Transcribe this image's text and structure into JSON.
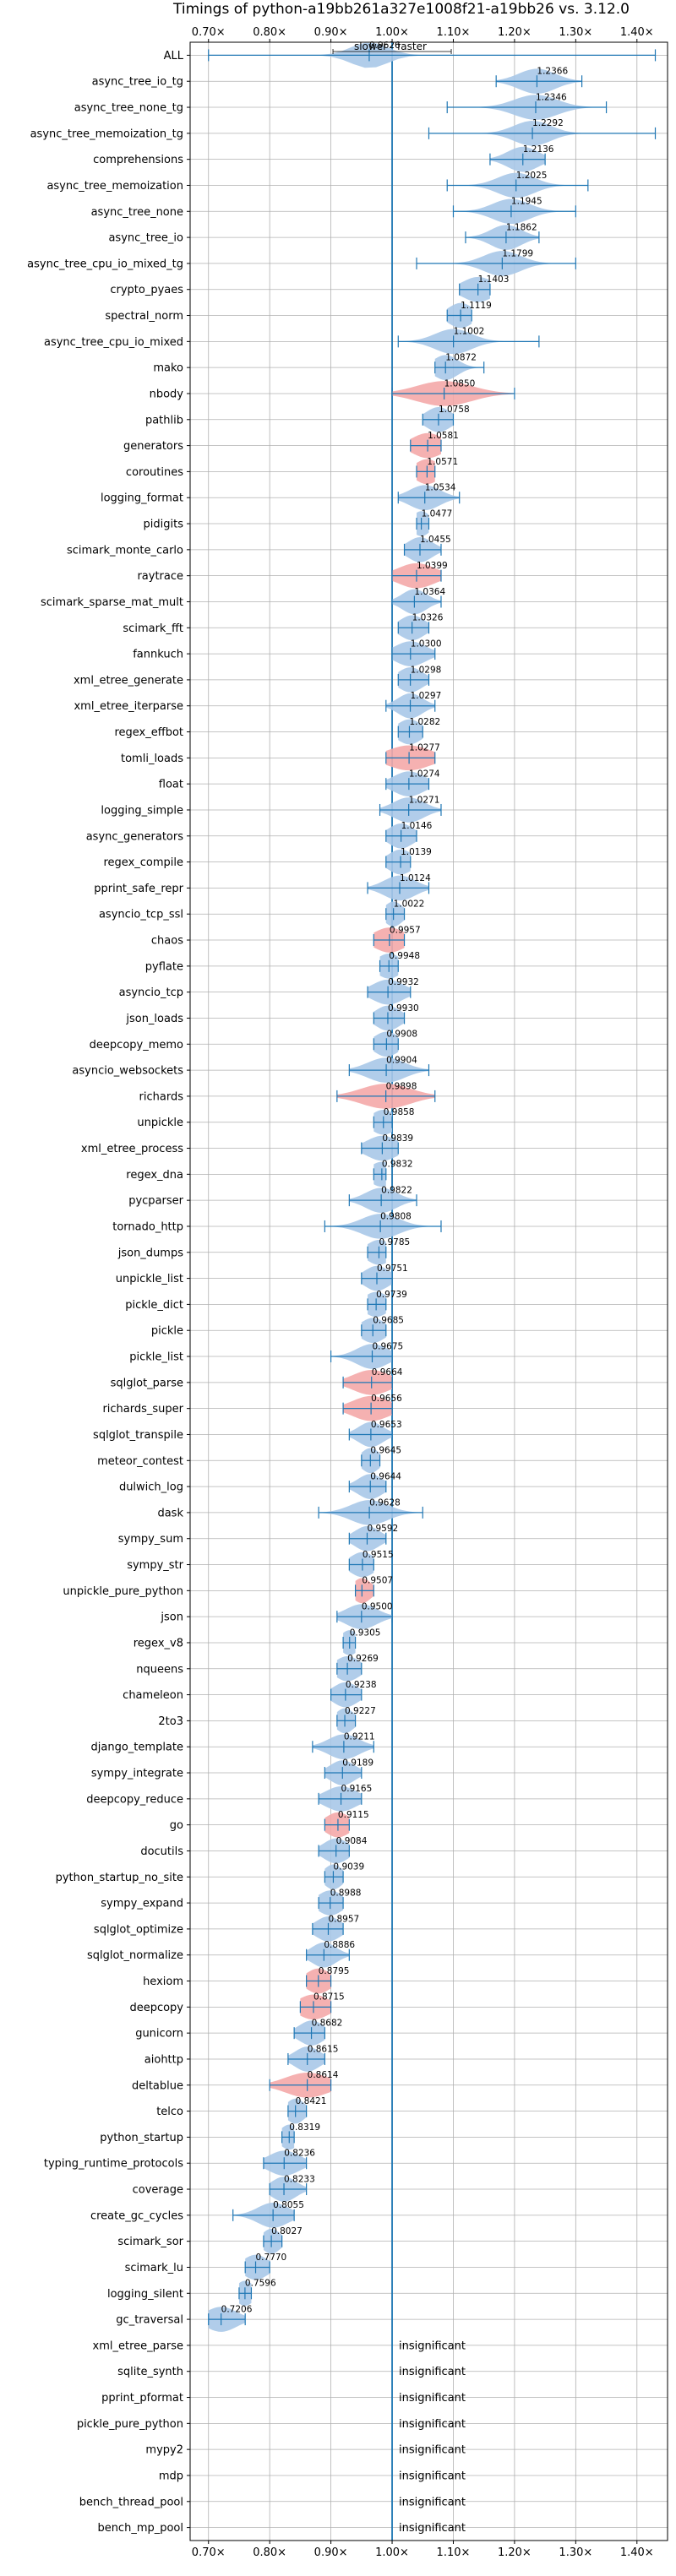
{
  "chart_data": {
    "type": "violin",
    "title": "Timings of python-a19bb261a327e1008f21-a19bb26 vs. 3.12.0",
    "xlabel": "",
    "ylabel": "",
    "xlim": [
      0.67,
      1.45
    ],
    "x_ticks": [
      0.7,
      0.8,
      0.9,
      1.0,
      1.1,
      1.2,
      1.3,
      1.4
    ],
    "x_tick_labels": [
      "0.70×",
      "0.80×",
      "0.90×",
      "1.00×",
      "1.10×",
      "1.20×",
      "1.30×",
      "1.40×"
    ],
    "reference_line": 1.0,
    "annotation_slower": "slower",
    "annotation_faster": "faster",
    "grid": true,
    "colors": {
      "normal": "#a8c8e8",
      "highlight": "#f4a8a8",
      "line": "#1f77b4",
      "grid": "#b0b0b0"
    },
    "insignificant_label": "insignificant",
    "benchmarks": [
      {
        "name": "ALL",
        "value": 0.9626,
        "label": "0.9626",
        "min": 0.7,
        "max": 1.43,
        "width": 0.06,
        "highlight": false
      },
      {
        "name": "async_tree_io_tg",
        "value": 1.2366,
        "label": "1.2366",
        "min": 1.17,
        "max": 1.31,
        "width": 0.06,
        "highlight": false
      },
      {
        "name": "async_tree_none_tg",
        "value": 1.2346,
        "label": "1.2346",
        "min": 1.09,
        "max": 1.35,
        "width": 0.07,
        "highlight": false
      },
      {
        "name": "async_tree_memoization_tg",
        "value": 1.2292,
        "label": "1.2292",
        "min": 1.06,
        "max": 1.43,
        "width": 0.06,
        "highlight": false
      },
      {
        "name": "comprehensions",
        "value": 1.2136,
        "label": "1.2136",
        "min": 1.16,
        "max": 1.25,
        "width": 0.05,
        "highlight": false
      },
      {
        "name": "async_tree_memoization",
        "value": 1.2025,
        "label": "1.2025",
        "min": 1.09,
        "max": 1.32,
        "width": 0.06,
        "highlight": false
      },
      {
        "name": "async_tree_none",
        "value": 1.1945,
        "label": "1.1945",
        "min": 1.1,
        "max": 1.3,
        "width": 0.06,
        "highlight": false
      },
      {
        "name": "async_tree_io",
        "value": 1.1862,
        "label": "1.1862",
        "min": 1.12,
        "max": 1.24,
        "width": 0.05,
        "highlight": false
      },
      {
        "name": "async_tree_cpu_io_mixed_tg",
        "value": 1.1799,
        "label": "1.1799",
        "min": 1.04,
        "max": 1.3,
        "width": 0.06,
        "highlight": false
      },
      {
        "name": "crypto_pyaes",
        "value": 1.1403,
        "label": "1.1403",
        "min": 1.11,
        "max": 1.16,
        "width": 0.05,
        "highlight": false
      },
      {
        "name": "spectral_norm",
        "value": 1.1119,
        "label": "1.1119",
        "min": 1.09,
        "max": 1.13,
        "width": 0.04,
        "highlight": false
      },
      {
        "name": "async_tree_cpu_io_mixed",
        "value": 1.1002,
        "label": "1.1002",
        "min": 1.01,
        "max": 1.24,
        "width": 0.06,
        "highlight": false
      },
      {
        "name": "mako",
        "value": 1.0872,
        "label": "1.0872",
        "min": 1.07,
        "max": 1.15,
        "width": 0.04,
        "highlight": false
      },
      {
        "name": "nbody",
        "value": 1.085,
        "label": "1.0850",
        "min": 1.0,
        "max": 1.2,
        "width": 0.09,
        "highlight": true
      },
      {
        "name": "pathlib",
        "value": 1.0758,
        "label": "1.0758",
        "min": 1.05,
        "max": 1.1,
        "width": 0.04,
        "highlight": false
      },
      {
        "name": "generators",
        "value": 1.0581,
        "label": "1.0581",
        "min": 1.03,
        "max": 1.08,
        "width": 0.05,
        "highlight": true
      },
      {
        "name": "coroutines",
        "value": 1.0571,
        "label": "1.0571",
        "min": 1.04,
        "max": 1.07,
        "width": 0.04,
        "highlight": true
      },
      {
        "name": "logging_format",
        "value": 1.0534,
        "label": "1.0534",
        "min": 1.01,
        "max": 1.11,
        "width": 0.05,
        "highlight": false
      },
      {
        "name": "pidigits",
        "value": 1.0477,
        "label": "1.0477",
        "min": 1.04,
        "max": 1.06,
        "width": 0.03,
        "highlight": false
      },
      {
        "name": "scimark_monte_carlo",
        "value": 1.0455,
        "label": "1.0455",
        "min": 1.02,
        "max": 1.08,
        "width": 0.04,
        "highlight": false
      },
      {
        "name": "raytrace",
        "value": 1.0399,
        "label": "1.0399",
        "min": 1.0,
        "max": 1.08,
        "width": 0.06,
        "highlight": true
      },
      {
        "name": "scimark_sparse_mat_mult",
        "value": 1.0364,
        "label": "1.0364",
        "min": 1.0,
        "max": 1.08,
        "width": 0.04,
        "highlight": false
      },
      {
        "name": "scimark_fft",
        "value": 1.0326,
        "label": "1.0326",
        "min": 1.01,
        "max": 1.06,
        "width": 0.04,
        "highlight": false
      },
      {
        "name": "fannkuch",
        "value": 1.03,
        "label": "1.0300",
        "min": 1.0,
        "max": 1.07,
        "width": 0.05,
        "highlight": false
      },
      {
        "name": "xml_etree_generate",
        "value": 1.0298,
        "label": "1.0298",
        "min": 1.01,
        "max": 1.06,
        "width": 0.04,
        "highlight": false
      },
      {
        "name": "xml_etree_iterparse",
        "value": 1.0297,
        "label": "1.0297",
        "min": 0.99,
        "max": 1.07,
        "width": 0.04,
        "highlight": false
      },
      {
        "name": "regex_effbot",
        "value": 1.0282,
        "label": "1.0282",
        "min": 1.01,
        "max": 1.05,
        "width": 0.04,
        "highlight": false
      },
      {
        "name": "tomli_loads",
        "value": 1.0277,
        "label": "1.0277",
        "min": 0.99,
        "max": 1.07,
        "width": 0.07,
        "highlight": true
      },
      {
        "name": "float",
        "value": 1.0274,
        "label": "1.0274",
        "min": 0.99,
        "max": 1.06,
        "width": 0.05,
        "highlight": false
      },
      {
        "name": "logging_simple",
        "value": 1.0271,
        "label": "1.0271",
        "min": 0.98,
        "max": 1.08,
        "width": 0.05,
        "highlight": false
      },
      {
        "name": "async_generators",
        "value": 1.0146,
        "label": "1.0146",
        "min": 0.99,
        "max": 1.04,
        "width": 0.04,
        "highlight": false
      },
      {
        "name": "regex_compile",
        "value": 1.0139,
        "label": "1.0139",
        "min": 0.99,
        "max": 1.03,
        "width": 0.04,
        "highlight": false
      },
      {
        "name": "pprint_safe_repr",
        "value": 1.0124,
        "label": "1.0124",
        "min": 0.96,
        "max": 1.06,
        "width": 0.05,
        "highlight": false
      },
      {
        "name": "asyncio_tcp_ssl",
        "value": 1.0022,
        "label": "1.0022",
        "min": 0.99,
        "max": 1.02,
        "width": 0.03,
        "highlight": false
      },
      {
        "name": "chaos",
        "value": 0.9957,
        "label": "0.9957",
        "min": 0.97,
        "max": 1.02,
        "width": 0.05,
        "highlight": true
      },
      {
        "name": "pyflate",
        "value": 0.9948,
        "label": "0.9948",
        "min": 0.98,
        "max": 1.01,
        "width": 0.04,
        "highlight": false
      },
      {
        "name": "asyncio_tcp",
        "value": 0.9932,
        "label": "0.9932",
        "min": 0.96,
        "max": 1.03,
        "width": 0.05,
        "highlight": false
      },
      {
        "name": "json_loads",
        "value": 0.993,
        "label": "0.9930",
        "min": 0.97,
        "max": 1.02,
        "width": 0.04,
        "highlight": false
      },
      {
        "name": "deepcopy_memo",
        "value": 0.9908,
        "label": "0.9908",
        "min": 0.97,
        "max": 1.01,
        "width": 0.04,
        "highlight": false
      },
      {
        "name": "asyncio_websockets",
        "value": 0.9904,
        "label": "0.9904",
        "min": 0.93,
        "max": 1.06,
        "width": 0.06,
        "highlight": false
      },
      {
        "name": "richards",
        "value": 0.9898,
        "label": "0.9898",
        "min": 0.91,
        "max": 1.07,
        "width": 0.08,
        "highlight": true
      },
      {
        "name": "unpickle",
        "value": 0.9858,
        "label": "0.9858",
        "min": 0.97,
        "max": 1.0,
        "width": 0.04,
        "highlight": false
      },
      {
        "name": "xml_etree_process",
        "value": 0.9839,
        "label": "0.9839",
        "min": 0.95,
        "max": 1.01,
        "width": 0.05,
        "highlight": false
      },
      {
        "name": "regex_dna",
        "value": 0.9832,
        "label": "0.9832",
        "min": 0.97,
        "max": 0.99,
        "width": 0.04,
        "highlight": false
      },
      {
        "name": "pycparser",
        "value": 0.9822,
        "label": "0.9822",
        "min": 0.93,
        "max": 1.04,
        "width": 0.05,
        "highlight": false
      },
      {
        "name": "tornado_http",
        "value": 0.9808,
        "label": "0.9808",
        "min": 0.89,
        "max": 1.08,
        "width": 0.06,
        "highlight": false
      },
      {
        "name": "json_dumps",
        "value": 0.9785,
        "label": "0.9785",
        "min": 0.96,
        "max": 0.99,
        "width": 0.04,
        "highlight": false
      },
      {
        "name": "unpickle_list",
        "value": 0.9751,
        "label": "0.9751",
        "min": 0.95,
        "max": 1.0,
        "width": 0.04,
        "highlight": false
      },
      {
        "name": "pickle_dict",
        "value": 0.9739,
        "label": "0.9739",
        "min": 0.96,
        "max": 0.99,
        "width": 0.04,
        "highlight": false
      },
      {
        "name": "pickle",
        "value": 0.9685,
        "label": "0.9685",
        "min": 0.95,
        "max": 0.99,
        "width": 0.04,
        "highlight": false
      },
      {
        "name": "pickle_list",
        "value": 0.9675,
        "label": "0.9675",
        "min": 0.9,
        "max": 1.0,
        "width": 0.05,
        "highlight": false
      },
      {
        "name": "sqlglot_parse",
        "value": 0.9664,
        "label": "0.9664",
        "min": 0.92,
        "max": 1.0,
        "width": 0.06,
        "highlight": true
      },
      {
        "name": "richards_super",
        "value": 0.9656,
        "label": "0.9656",
        "min": 0.92,
        "max": 1.0,
        "width": 0.06,
        "highlight": true
      },
      {
        "name": "sqlglot_transpile",
        "value": 0.9653,
        "label": "0.9653",
        "min": 0.93,
        "max": 1.0,
        "width": 0.04,
        "highlight": false
      },
      {
        "name": "meteor_contest",
        "value": 0.9645,
        "label": "0.9645",
        "min": 0.95,
        "max": 0.98,
        "width": 0.03,
        "highlight": false
      },
      {
        "name": "dulwich_log",
        "value": 0.9644,
        "label": "0.9644",
        "min": 0.93,
        "max": 0.99,
        "width": 0.04,
        "highlight": false
      },
      {
        "name": "dask",
        "value": 0.9628,
        "label": "0.9628",
        "min": 0.88,
        "max": 1.05,
        "width": 0.06,
        "highlight": false
      },
      {
        "name": "sympy_sum",
        "value": 0.9592,
        "label": "0.9592",
        "min": 0.93,
        "max": 0.99,
        "width": 0.04,
        "highlight": false
      },
      {
        "name": "sympy_str",
        "value": 0.9515,
        "label": "0.9515",
        "min": 0.93,
        "max": 0.97,
        "width": 0.04,
        "highlight": false
      },
      {
        "name": "unpickle_pure_python",
        "value": 0.9507,
        "label": "0.9507",
        "min": 0.94,
        "max": 0.97,
        "width": 0.03,
        "highlight": true
      },
      {
        "name": "json",
        "value": 0.95,
        "label": "0.9500",
        "min": 0.91,
        "max": 1.0,
        "width": 0.05,
        "highlight": false
      },
      {
        "name": "regex_v8",
        "value": 0.9305,
        "label": "0.9305",
        "min": 0.92,
        "max": 0.94,
        "width": 0.03,
        "highlight": false
      },
      {
        "name": "nqueens",
        "value": 0.9269,
        "label": "0.9269",
        "min": 0.91,
        "max": 0.95,
        "width": 0.04,
        "highlight": false
      },
      {
        "name": "chameleon",
        "value": 0.9238,
        "label": "0.9238",
        "min": 0.9,
        "max": 0.95,
        "width": 0.04,
        "highlight": false
      },
      {
        "name": "2to3",
        "value": 0.9227,
        "label": "0.9227",
        "min": 0.91,
        "max": 0.94,
        "width": 0.03,
        "highlight": false
      },
      {
        "name": "django_template",
        "value": 0.9211,
        "label": "0.9211",
        "min": 0.87,
        "max": 0.97,
        "width": 0.05,
        "highlight": false
      },
      {
        "name": "sympy_integrate",
        "value": 0.9189,
        "label": "0.9189",
        "min": 0.89,
        "max": 0.95,
        "width": 0.04,
        "highlight": false
      },
      {
        "name": "deepcopy_reduce",
        "value": 0.9165,
        "label": "0.9165",
        "min": 0.88,
        "max": 0.95,
        "width": 0.05,
        "highlight": false
      },
      {
        "name": "go",
        "value": 0.9115,
        "label": "0.9115",
        "min": 0.89,
        "max": 0.93,
        "width": 0.04,
        "highlight": true
      },
      {
        "name": "docutils",
        "value": 0.9084,
        "label": "0.9084",
        "min": 0.88,
        "max": 0.93,
        "width": 0.04,
        "highlight": false
      },
      {
        "name": "python_startup_no_site",
        "value": 0.9039,
        "label": "0.9039",
        "min": 0.89,
        "max": 0.92,
        "width": 0.03,
        "highlight": false
      },
      {
        "name": "sympy_expand",
        "value": 0.8988,
        "label": "0.8988",
        "min": 0.88,
        "max": 0.92,
        "width": 0.04,
        "highlight": false
      },
      {
        "name": "sqlglot_optimize",
        "value": 0.8957,
        "label": "0.8957",
        "min": 0.87,
        "max": 0.92,
        "width": 0.04,
        "highlight": false
      },
      {
        "name": "sqlglot_normalize",
        "value": 0.8886,
        "label": "0.8886",
        "min": 0.86,
        "max": 0.93,
        "width": 0.04,
        "highlight": false
      },
      {
        "name": "hexiom",
        "value": 0.8795,
        "label": "0.8795",
        "min": 0.86,
        "max": 0.9,
        "width": 0.04,
        "highlight": true
      },
      {
        "name": "deepcopy",
        "value": 0.8715,
        "label": "0.8715",
        "min": 0.85,
        "max": 0.9,
        "width": 0.05,
        "highlight": true
      },
      {
        "name": "gunicorn",
        "value": 0.8682,
        "label": "0.8682",
        "min": 0.84,
        "max": 0.89,
        "width": 0.04,
        "highlight": false
      },
      {
        "name": "aiohttp",
        "value": 0.8615,
        "label": "0.8615",
        "min": 0.83,
        "max": 0.89,
        "width": 0.04,
        "highlight": false
      },
      {
        "name": "deltablue",
        "value": 0.8614,
        "label": "0.8614",
        "min": 0.8,
        "max": 0.9,
        "width": 0.07,
        "highlight": true
      },
      {
        "name": "telco",
        "value": 0.8421,
        "label": "0.8421",
        "min": 0.83,
        "max": 0.86,
        "width": 0.03,
        "highlight": false
      },
      {
        "name": "python_startup",
        "value": 0.8319,
        "label": "0.8319",
        "min": 0.82,
        "max": 0.84,
        "width": 0.03,
        "highlight": false
      },
      {
        "name": "typing_runtime_protocols",
        "value": 0.8236,
        "label": "0.8236",
        "min": 0.79,
        "max": 0.86,
        "width": 0.05,
        "highlight": false
      },
      {
        "name": "coverage",
        "value": 0.8233,
        "label": "0.8233",
        "min": 0.8,
        "max": 0.86,
        "width": 0.04,
        "highlight": false
      },
      {
        "name": "create_gc_cycles",
        "value": 0.8055,
        "label": "0.8055",
        "min": 0.74,
        "max": 0.84,
        "width": 0.05,
        "highlight": false
      },
      {
        "name": "scimark_sor",
        "value": 0.8027,
        "label": "0.8027",
        "min": 0.79,
        "max": 0.82,
        "width": 0.03,
        "highlight": false
      },
      {
        "name": "scimark_lu",
        "value": 0.777,
        "label": "0.7770",
        "min": 0.76,
        "max": 0.8,
        "width": 0.04,
        "highlight": false
      },
      {
        "name": "logging_silent",
        "value": 0.7596,
        "label": "0.7596",
        "min": 0.75,
        "max": 0.77,
        "width": 0.03,
        "highlight": false
      },
      {
        "name": "gc_traversal",
        "value": 0.7206,
        "label": "0.7206",
        "min": 0.7,
        "max": 0.76,
        "width": 0.05,
        "highlight": false
      },
      {
        "name": "xml_etree_parse",
        "value": null,
        "label": "",
        "insignificant": true
      },
      {
        "name": "sqlite_synth",
        "value": null,
        "label": "",
        "insignificant": true
      },
      {
        "name": "pprint_pformat",
        "value": null,
        "label": "",
        "insignificant": true
      },
      {
        "name": "pickle_pure_python",
        "value": null,
        "label": "",
        "insignificant": true
      },
      {
        "name": "mypy2",
        "value": null,
        "label": "",
        "insignificant": true
      },
      {
        "name": "mdp",
        "value": null,
        "label": "",
        "insignificant": true
      },
      {
        "name": "bench_thread_pool",
        "value": null,
        "label": "",
        "insignificant": true
      },
      {
        "name": "bench_mp_pool",
        "value": null,
        "label": "",
        "insignificant": true
      }
    ]
  }
}
